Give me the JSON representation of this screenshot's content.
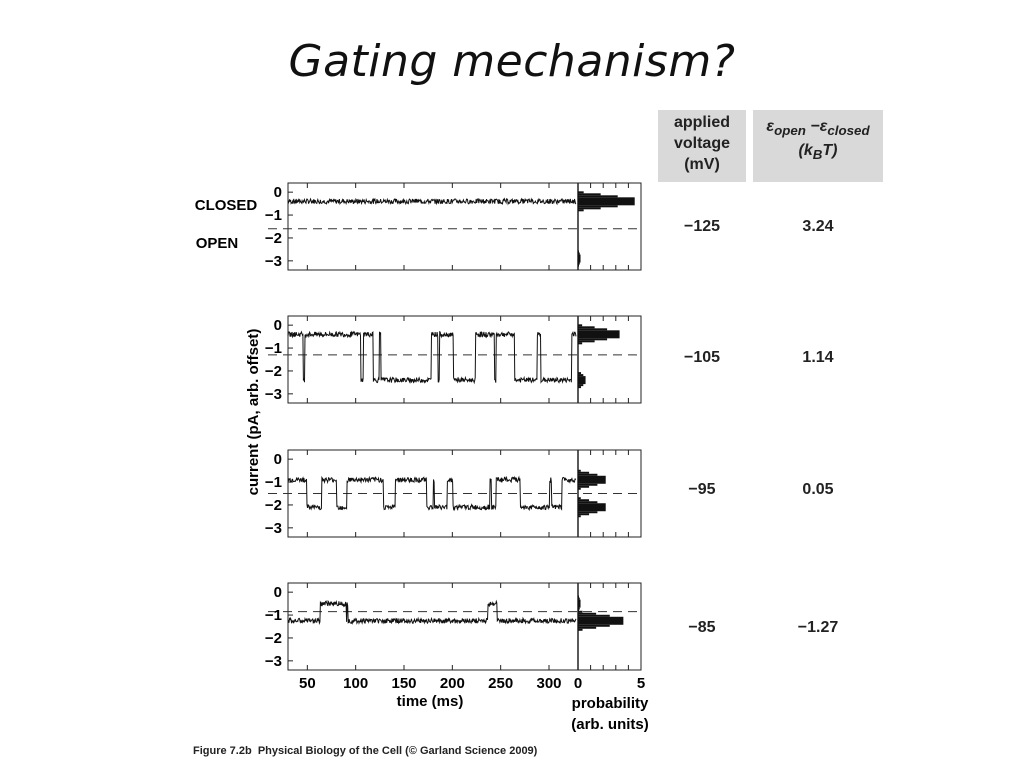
{
  "slide": {
    "title": "Gating mechanism?"
  },
  "table": {
    "headers": {
      "voltage_lines": [
        "applied",
        "voltage",
        "(mV)"
      ],
      "energy_line1_a": "ε",
      "energy_line1_b": "open",
      "energy_line1_c": " −ε",
      "energy_line1_d": "closed",
      "energy_line2_a": "(k",
      "energy_line2_b": "B",
      "energy_line2_c": "T)"
    },
    "rows": [
      {
        "voltage": "−125",
        "energy": "3.24"
      },
      {
        "voltage": "−105",
        "energy": "1.14"
      },
      {
        "voltage": "−95",
        "energy": "0.05"
      },
      {
        "voltage": "−85",
        "energy": "−1.27"
      }
    ]
  },
  "figure": {
    "state_labels": {
      "closed": "CLOSED",
      "open": "OPEN"
    },
    "y_axis_label": "current (pA, arb. offset)",
    "y_ticks": [
      "0",
      "−1",
      "−2",
      "−3"
    ],
    "x_axis_label": "time (ms)",
    "x_ticks": [
      "50",
      "100",
      "150",
      "200",
      "250",
      "300"
    ],
    "prob_axis_label_lines": [
      "probability",
      "(arb. units)"
    ],
    "prob_ticks": [
      "0",
      "5"
    ]
  },
  "chart_data": {
    "type": "line",
    "xlabel": "time (ms)",
    "ylabel": "current (pA, arb. offset)",
    "xlim": [
      30,
      330
    ],
    "ylim": [
      -3.4,
      0.4
    ],
    "prob_xlim": [
      0,
      5
    ],
    "series": [
      {
        "voltage_mV": -125,
        "closed_level": -0.4,
        "open_level": -2.9,
        "threshold": -1.6,
        "open_fraction": 0.04,
        "histogram": [
          {
            "level": -0.4,
            "prob": 4.5
          },
          {
            "level": -2.9,
            "prob": 0.2
          }
        ]
      },
      {
        "voltage_mV": -105,
        "closed_level": -0.4,
        "open_level": -2.4,
        "threshold": -1.3,
        "open_fraction": 0.35,
        "histogram": [
          {
            "level": -0.4,
            "prob": 3.3
          },
          {
            "level": -2.4,
            "prob": 0.6
          }
        ]
      },
      {
        "voltage_mV": -95,
        "closed_level": -0.9,
        "open_level": -2.1,
        "threshold": -1.5,
        "open_fraction": 0.5,
        "histogram": [
          {
            "level": -0.9,
            "prob": 2.2
          },
          {
            "level": -2.1,
            "prob": 2.2
          }
        ]
      },
      {
        "voltage_mV": -85,
        "closed_level": -1.25,
        "open_level": -0.5,
        "threshold": -0.85,
        "open_fraction": 0.15,
        "histogram": [
          {
            "level": -1.25,
            "prob": 3.6
          },
          {
            "level": -0.5,
            "prob": 0.2
          }
        ]
      }
    ]
  },
  "caption": {
    "figure_label": "Figure 7.2b",
    "text": "Physical Biology of the Cell (© Garland Science 2009)"
  }
}
